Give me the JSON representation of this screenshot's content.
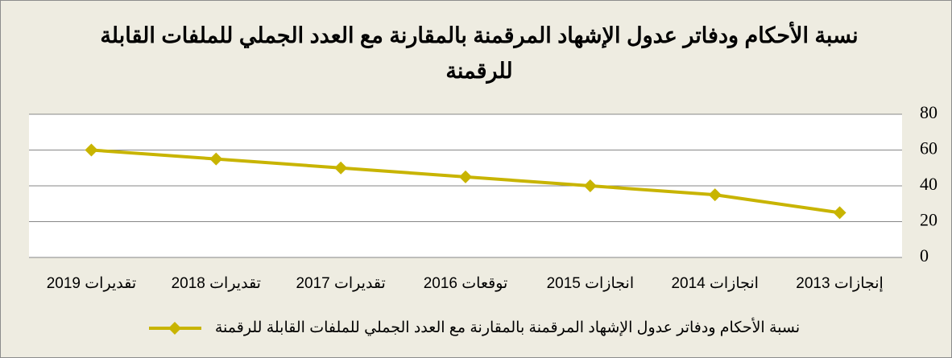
{
  "chart_data": {
    "type": "line",
    "title": "نسبة الأحكام ودفاتر عدول الإشهاد المرقمنة بالمقارنة مع العدد الجملي للملفات القابلة للرقمنة",
    "categories": [
      "إنجازات 2013",
      "انجازات 2014",
      "انجازات 2015",
      "توقعات 2016",
      "تقديرات 2017",
      "تقديرات 2018",
      "تقديرات 2019"
    ],
    "series": [
      {
        "name": "نسبة الأحكام ودفاتر عدول الإشهاد المرقمنة بالمقارنة مع العدد الجملي للملفات القابلة للرقمنة",
        "color": "#c8b400",
        "values": [
          25,
          35,
          40,
          45,
          50,
          55,
          60
        ]
      }
    ],
    "ylim": [
      0,
      80
    ],
    "yticks": [
      0,
      20,
      40,
      60,
      80
    ],
    "grid": true,
    "x_reversed": true,
    "y_axis_side": "right",
    "legend": "bottom"
  }
}
